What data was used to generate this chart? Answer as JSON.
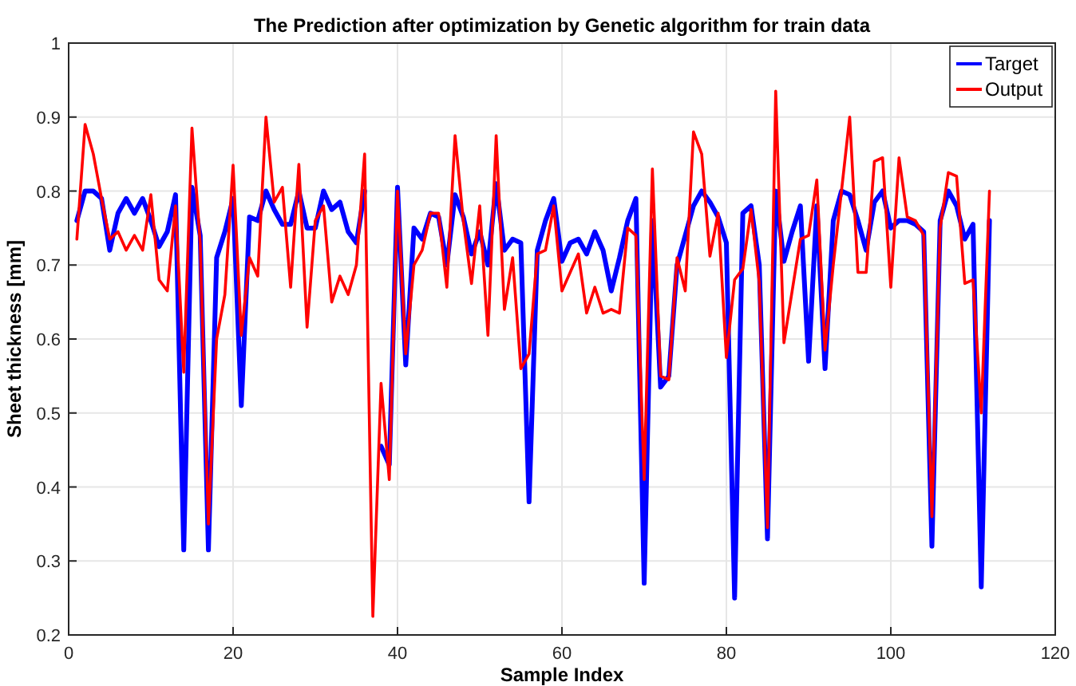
{
  "chart_data": {
    "type": "line",
    "title": "The Prediction after optimization by Genetic algorithm for train data",
    "xlabel": "Sample Index",
    "ylabel": "Sheet thickness [mm]",
    "x": [
      1,
      2,
      3,
      4,
      5,
      6,
      7,
      8,
      9,
      10,
      11,
      12,
      13,
      14,
      15,
      16,
      17,
      18,
      19,
      20,
      21,
      22,
      23,
      24,
      25,
      26,
      27,
      28,
      29,
      30,
      31,
      32,
      33,
      34,
      35,
      36,
      37,
      38,
      39,
      40,
      41,
      42,
      43,
      44,
      45,
      46,
      47,
      48,
      49,
      50,
      51,
      52,
      53,
      54,
      55,
      56,
      57,
      58,
      59,
      60,
      61,
      62,
      63,
      64,
      65,
      66,
      67,
      68,
      69,
      70,
      71,
      72,
      73,
      74,
      75,
      76,
      77,
      78,
      79,
      80,
      81,
      82,
      83,
      84,
      85,
      86,
      87,
      88,
      89,
      90,
      91,
      92,
      93,
      94,
      95,
      96,
      97,
      98,
      99,
      100,
      101,
      102,
      103,
      104,
      105,
      106,
      107,
      108,
      109,
      110,
      111,
      112
    ],
    "series": [
      {
        "name": "Target",
        "color": "#0000ff",
        "values": [
          0.76,
          0.8,
          0.8,
          0.79,
          0.72,
          0.77,
          0.79,
          0.77,
          0.79,
          0.76,
          0.725,
          0.745,
          0.795,
          0.315,
          0.805,
          0.74,
          0.315,
          0.71,
          0.745,
          0.79,
          0.51,
          0.765,
          0.76,
          0.8,
          0.775,
          0.755,
          0.755,
          0.8,
          0.75,
          0.75,
          0.8,
          0.775,
          0.785,
          0.745,
          0.73,
          0.8,
          null,
          0.455,
          0.43,
          0.805,
          0.565,
          0.75,
          0.735,
          0.77,
          0.765,
          0.7,
          0.795,
          0.765,
          0.715,
          0.745,
          0.7,
          0.81,
          0.72,
          0.735,
          0.73,
          0.38,
          0.72,
          0.76,
          0.79,
          0.705,
          0.73,
          0.735,
          0.715,
          0.745,
          0.72,
          0.665,
          0.71,
          0.76,
          0.79,
          0.27,
          0.76,
          0.535,
          0.55,
          0.7,
          0.74,
          0.78,
          0.8,
          0.785,
          0.765,
          0.73,
          0.25,
          0.77,
          0.78,
          0.7,
          0.33,
          0.8,
          0.705,
          0.745,
          0.78,
          0.57,
          0.78,
          0.56,
          0.76,
          0.8,
          0.795,
          0.76,
          0.72,
          0.785,
          0.8,
          0.75,
          0.76,
          0.76,
          0.755,
          0.745,
          0.32,
          0.76,
          0.8,
          0.78,
          0.735,
          0.755,
          0.265,
          0.76
        ]
      },
      {
        "name": "Output",
        "color": "#ff0000",
        "values": [
          0.735,
          0.89,
          0.85,
          0.79,
          0.735,
          0.745,
          0.72,
          0.74,
          0.72,
          0.795,
          0.68,
          0.665,
          0.78,
          0.555,
          0.885,
          0.73,
          0.35,
          0.6,
          0.66,
          0.835,
          0.605,
          0.71,
          0.685,
          0.9,
          0.785,
          0.805,
          0.67,
          0.836,
          0.616,
          0.76,
          0.78,
          0.65,
          0.685,
          0.66,
          0.7,
          0.85,
          0.225,
          0.54,
          0.41,
          0.8,
          0.58,
          0.7,
          0.72,
          0.77,
          0.77,
          0.67,
          0.875,
          0.76,
          0.675,
          0.78,
          0.605,
          0.875,
          0.64,
          0.71,
          0.56,
          0.58,
          0.715,
          0.72,
          0.78,
          0.665,
          0.69,
          0.715,
          0.635,
          0.67,
          0.635,
          0.64,
          0.635,
          0.75,
          0.74,
          0.41,
          0.83,
          0.55,
          0.545,
          0.71,
          0.665,
          0.88,
          0.85,
          0.712,
          0.77,
          0.575,
          0.68,
          0.695,
          0.775,
          0.677,
          0.345,
          0.935,
          0.595,
          0.665,
          0.735,
          0.74,
          0.815,
          0.585,
          0.7,
          0.8,
          0.9,
          0.69,
          0.69,
          0.84,
          0.845,
          0.67,
          0.845,
          0.765,
          0.76,
          0.74,
          0.36,
          0.75,
          0.825,
          0.82,
          0.675,
          0.68,
          0.5,
          0.8
        ]
      }
    ],
    "xlim": [
      0,
      120
    ],
    "xticks": [
      0,
      20,
      40,
      60,
      80,
      100,
      120
    ],
    "ylim": [
      0.2,
      1
    ],
    "yticks": [
      0.2,
      0.3,
      0.4,
      0.5,
      0.6,
      0.7,
      0.8,
      0.9,
      1
    ],
    "grid": true,
    "legend": "top right",
    "line_style": "solid",
    "marker": "none"
  }
}
